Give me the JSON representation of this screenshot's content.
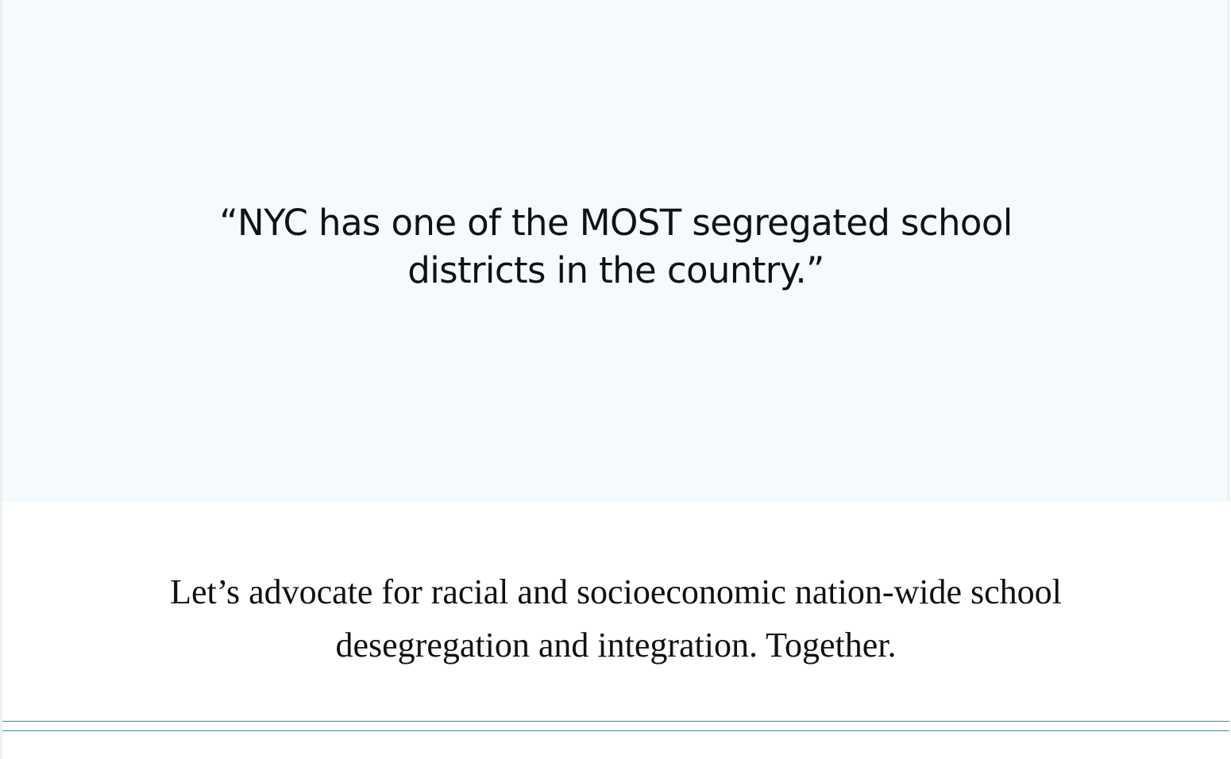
{
  "hero": {
    "quote": "“NYC has one of the MOST segregated school districts in the country.”"
  },
  "cta": {
    "text": "Let’s advocate for racial and socioeconomic nation-wide school desegregation and integration. Together."
  },
  "colors": {
    "hero_background": "#f4fafd",
    "page_background": "#ffffff",
    "text": "#111111",
    "divider": "#4a8a96"
  }
}
